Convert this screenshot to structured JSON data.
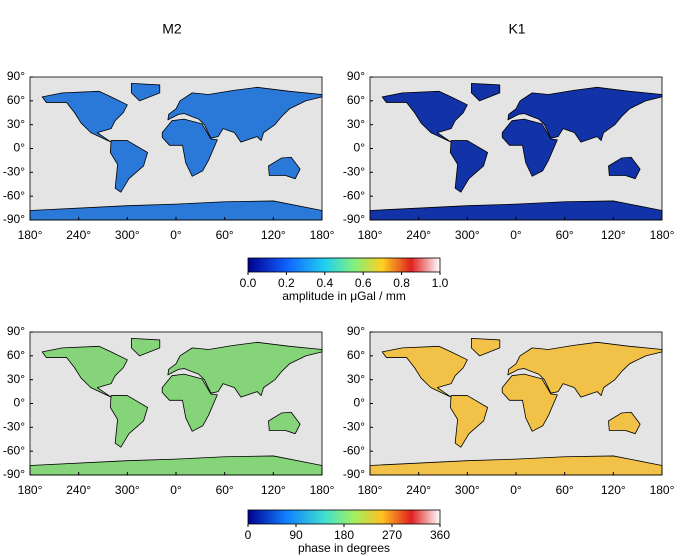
{
  "columns": [
    {
      "title": "M2"
    },
    {
      "title": "K1"
    }
  ],
  "lat_labels": [
    "90°",
    "60°",
    "30°",
    "0°",
    "-30°",
    "-60°",
    "-90°"
  ],
  "lon_labels": [
    "180°",
    "240°",
    "300°",
    "0°",
    "60°",
    "120°",
    "180°"
  ],
  "colorbars": [
    {
      "ticks": [
        "0.0",
        "0.2",
        "0.4",
        "0.6",
        "0.8",
        "1.0"
      ],
      "label": "amplitude in μGal / mm"
    },
    {
      "ticks": [
        "0",
        "90",
        "180",
        "270",
        "360"
      ],
      "label": "phase in degrees"
    }
  ]
}
